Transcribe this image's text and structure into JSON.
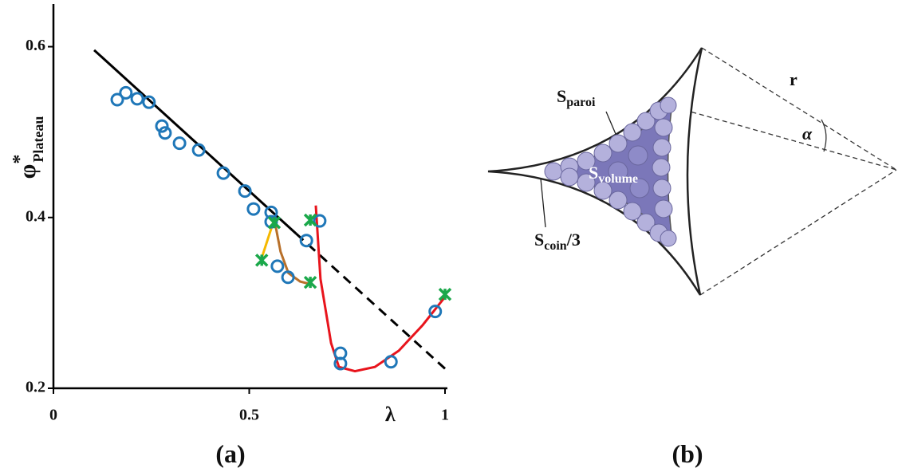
{
  "chart_data": {
    "type": "scatter",
    "y_label": "φ",
    "y_label_sup": "*",
    "y_label_sub": "Plateau",
    "x_label": "λ",
    "x_label_at": 0.86,
    "panel_label": "(a)",
    "xlim": [
      0,
      1
    ],
    "ylim": [
      0.2,
      0.65
    ],
    "xticks": [
      0,
      0.5,
      1
    ],
    "yticks": [
      0.2,
      0.4,
      0.6
    ],
    "series": [
      {
        "style": "line",
        "color": "#000000",
        "dash": false,
        "x": [
          0.104,
          0.62
        ],
        "values": [
          0.596,
          0.381
        ]
      },
      {
        "style": "line",
        "color": "#000000",
        "dash": true,
        "x": [
          0.62,
          1.0
        ],
        "values": [
          0.381,
          0.223
        ]
      },
      {
        "style": "line",
        "color": "#f5b800",
        "dash": false,
        "x": [
          0.53,
          0.564
        ],
        "values": [
          0.35,
          0.398
        ]
      },
      {
        "style": "line",
        "color": "#b8702a",
        "dash": false,
        "x": [
          0.564,
          0.58,
          0.6,
          0.63,
          0.656
        ],
        "values": [
          0.398,
          0.36,
          0.335,
          0.325,
          0.322
        ]
      },
      {
        "style": "line",
        "color": "#e8141c",
        "dash": false,
        "x": [
          0.67,
          0.682,
          0.699,
          0.709,
          0.729,
          0.77,
          0.821,
          0.882,
          0.943,
          1.0
        ],
        "values": [
          0.414,
          0.328,
          0.281,
          0.253,
          0.225,
          0.22,
          0.225,
          0.244,
          0.274,
          0.307
        ]
      },
      {
        "style": "circle",
        "color": "#1f77b8",
        "x": [
          0.163,
          0.185,
          0.214,
          0.244,
          0.277,
          0.285,
          0.322,
          0.371,
          0.434,
          0.489,
          0.511,
          0.556,
          0.556,
          0.572,
          0.599,
          0.646,
          0.68,
          0.733,
          0.733,
          0.862,
          0.975
        ],
        "values": [
          0.538,
          0.546,
          0.539,
          0.535,
          0.507,
          0.499,
          0.487,
          0.479,
          0.452,
          0.431,
          0.41,
          0.406,
          0.395,
          0.343,
          0.33,
          0.373,
          0.396,
          0.241,
          0.229,
          0.231,
          0.29
        ]
      },
      {
        "style": "cross",
        "color": "#1aa84a",
        "x": [
          0.532,
          0.564,
          0.656,
          0.656,
          1.0
        ],
        "values": [
          0.35,
          0.394,
          0.324,
          0.397,
          0.31
        ]
      }
    ]
  },
  "diagram": {
    "panel_label": "(b)",
    "r": "r",
    "alpha": "α",
    "paroi": {
      "s": "S",
      "sub": "paroi"
    },
    "volume": {
      "s": "S",
      "sub": "volume"
    },
    "coin": {
      "s": "S",
      "sub": "coin",
      "tail": "/3"
    }
  }
}
